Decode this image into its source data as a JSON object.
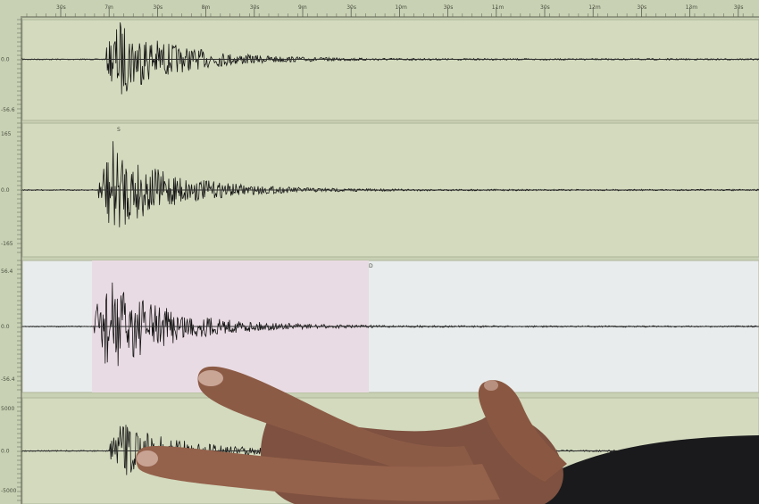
{
  "time_axis": {
    "labels": [
      "30s",
      "7m",
      "30s",
      "8m",
      "30s",
      "9m",
      "30s",
      "10m",
      "30s",
      "11m",
      "30s",
      "12m",
      "30s",
      "13m",
      "30s"
    ]
  },
  "panels": [
    {
      "axis_labels": [
        "0.0",
        "-56.6"
      ],
      "highlighted": false,
      "amplitude": 1.0,
      "onset": 0.11
    },
    {
      "axis_labels": [
        "165",
        "0.0",
        "-165"
      ],
      "highlighted": false,
      "phase_marker": "S",
      "amplitude": 0.9,
      "onset": 0.1
    },
    {
      "axis_labels": [
        "56.4",
        "0.0",
        "-56.4"
      ],
      "highlighted": true,
      "highlight_marker": "D",
      "amplitude": 1.0,
      "onset": 0.095
    },
    {
      "axis_labels": [
        "5000",
        "0.0",
        "-5000"
      ],
      "highlighted": false,
      "amplitude": 0.7,
      "onset": 0.115
    }
  ],
  "colors": {
    "screen": "#c9d1b4",
    "panel": "#d3dabe",
    "panel_white": "#e8ecec",
    "highlight": "#e9dbe3",
    "trace": "#141414",
    "skin": "#8a5a44",
    "sleeve": "#1a1a1c"
  }
}
